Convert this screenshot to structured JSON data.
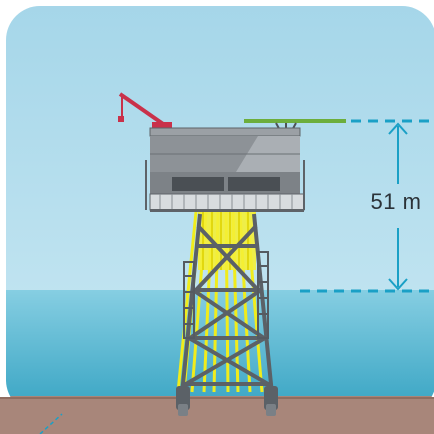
{
  "measurement": {
    "label": "51 m",
    "value": 51,
    "unit": "m"
  },
  "colors": {
    "sky": "#a9d9ea",
    "sea": "#7cc9df",
    "seabed": "#a98778",
    "jacket_legs": "#f2ee1a",
    "jacket_bracing": "#5b6167",
    "topsides": "#8b9095",
    "dashed_marker": "#1aa0c6",
    "crane": "#c9314a",
    "helideck": "#6cae3c"
  },
  "icons": {
    "crane": "crane-icon",
    "helideck": "helideck-icon",
    "arrow_up": "arrow-up-icon",
    "arrow_down": "arrow-down-icon"
  }
}
